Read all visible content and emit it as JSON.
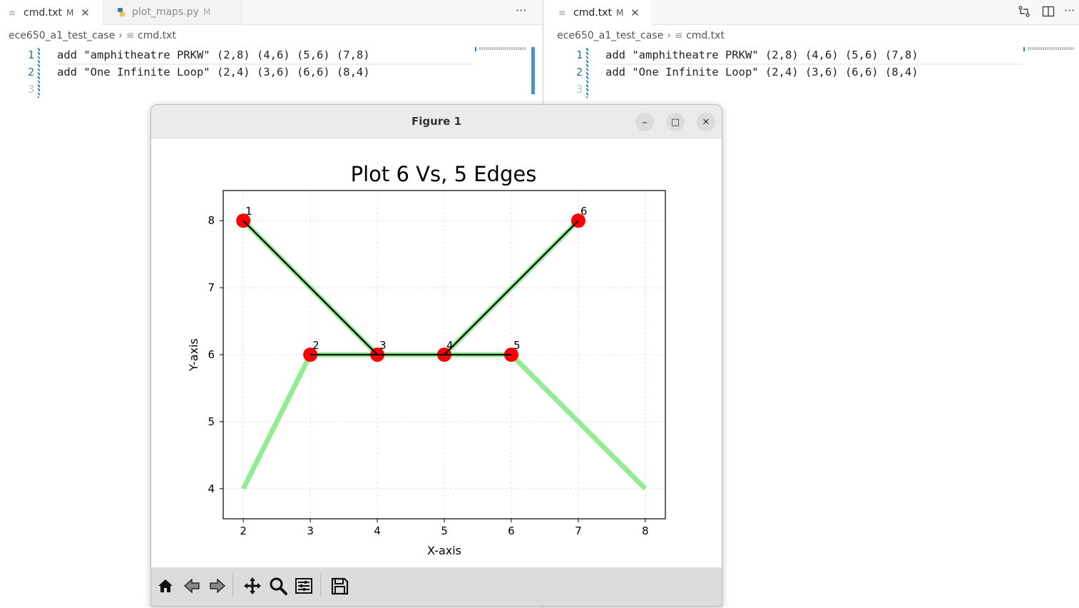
{
  "left_editor": {
    "tabs": [
      {
        "name": "cmd.txt",
        "modified": "M",
        "active": true
      },
      {
        "name": "plot_maps.py",
        "modified": "M",
        "active": false
      }
    ],
    "more_actions": "···",
    "breadcrumb": {
      "folder": "ece650_a1_test_case",
      "file": "cmd.txt"
    },
    "lines": [
      {
        "number": "1",
        "text": "add \"amphitheatre PRKW\" (2,8) (4,6) (5,6) (7,8)"
      },
      {
        "number": "2",
        "text": "add \"One Infinite Loop\" (2,4) (3,6) (6,6) (8,4)"
      },
      {
        "number": "3",
        "text": ""
      }
    ]
  },
  "right_editor": {
    "tabs": [
      {
        "name": "cmd.txt",
        "modified": "M",
        "active": true
      }
    ],
    "actions": [
      "compare-icon",
      "split-editor-icon",
      "more-icon"
    ],
    "more_actions": "···",
    "breadcrumb": {
      "folder": "ece650_a1_test_case",
      "file": "cmd.txt"
    },
    "lines": [
      {
        "number": "1",
        "text": "add \"amphitheatre PRKW\" (2,8) (4,6) (5,6) (7,8)"
      },
      {
        "number": "2",
        "text": "add \"One Infinite Loop\" (2,4) (3,6) (6,6) (8,4)"
      },
      {
        "number": "3",
        "text": ""
      }
    ]
  },
  "figure_window": {
    "title": "Figure 1",
    "controls": {
      "minimize": "–",
      "maximize": "□",
      "close": "✕"
    },
    "toolbar": [
      "home-icon",
      "back-icon",
      "forward-icon",
      "pan-icon",
      "zoom-icon",
      "configure-subplots-icon",
      "save-icon"
    ]
  },
  "chart_data": {
    "type": "line",
    "title": "Plot 6 Vs, 5 Edges",
    "xlabel": "X-axis",
    "ylabel": "Y-axis",
    "xlim": [
      1.7,
      8.3
    ],
    "ylim": [
      3.55,
      8.45
    ],
    "xticks": [
      2,
      3,
      4,
      5,
      6,
      7,
      8
    ],
    "yticks": [
      4,
      5,
      6,
      7,
      8
    ],
    "grid": true,
    "streets": [
      {
        "points": [
          [
            2,
            8
          ],
          [
            4,
            6
          ],
          [
            5,
            6
          ],
          [
            7,
            8
          ]
        ],
        "color": "#90ee90"
      },
      {
        "points": [
          [
            2,
            4
          ],
          [
            3,
            6
          ],
          [
            6,
            6
          ],
          [
            8,
            4
          ]
        ],
        "color": "#90ee90"
      }
    ],
    "vertices": [
      {
        "label": "1",
        "x": 2,
        "y": 8
      },
      {
        "label": "2",
        "x": 3,
        "y": 6
      },
      {
        "label": "3",
        "x": 4,
        "y": 6
      },
      {
        "label": "4",
        "x": 5,
        "y": 6
      },
      {
        "label": "5",
        "x": 6,
        "y": 6
      },
      {
        "label": "6",
        "x": 7,
        "y": 8
      }
    ],
    "edges": [
      [
        1,
        3
      ],
      [
        3,
        4
      ],
      [
        4,
        6
      ],
      [
        2,
        3
      ],
      [
        4,
        5
      ]
    ],
    "vertex_color": "#ff0000",
    "edge_color": "#000000"
  }
}
